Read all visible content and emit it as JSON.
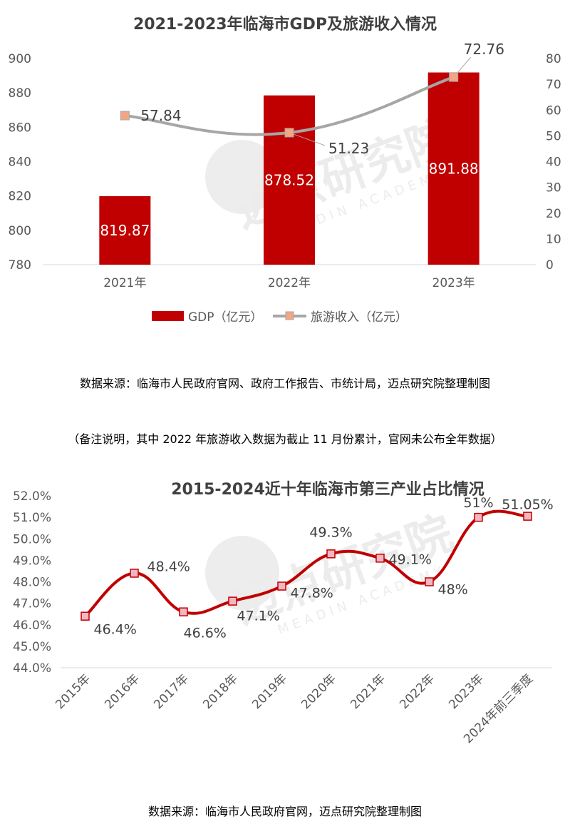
{
  "chart_data": [
    {
      "type": "bar+line",
      "title": "2021-2023年临海市GDP及旅游收入情况",
      "categories": [
        "2021年",
        "2022年",
        "2023年"
      ],
      "series": [
        {
          "name": "GDP（亿元）",
          "type": "bar",
          "axis": "left",
          "color": "#c00000",
          "values": [
            819.87,
            878.52,
            891.88
          ]
        },
        {
          "name": "旅游收入（亿元）",
          "type": "line",
          "axis": "right",
          "color": "#a6a6a6",
          "marker_color": "#f4a582",
          "values": [
            57.84,
            51.23,
            72.76
          ]
        }
      ],
      "left_axis": {
        "ylim": [
          780,
          900
        ],
        "ticks": [
          "780",
          "800",
          "820",
          "840",
          "860",
          "880",
          "900"
        ]
      },
      "right_axis": {
        "ylim": [
          0,
          80
        ],
        "ticks": [
          "0",
          "10",
          "20",
          "30",
          "40",
          "50",
          "60",
          "70",
          "80"
        ]
      },
      "bar_labels": [
        "819.87",
        "878.52",
        "891.88"
      ],
      "line_labels": [
        "57.84",
        "51.23",
        "72.76"
      ],
      "legend": [
        "GDP（亿元）",
        "旅游收入（亿元）"
      ]
    },
    {
      "type": "line",
      "title": "2015-2024近十年临海市第三产业占比情况",
      "categories": [
        "2015年",
        "2016年",
        "2017年",
        "2018年",
        "2019年",
        "2020年",
        "2021年",
        "2022年",
        "2023年",
        "2024年前三季度"
      ],
      "series": [
        {
          "name": "第三产业占比",
          "color": "#c00000",
          "values": [
            46.4,
            48.4,
            46.6,
            47.1,
            47.8,
            49.3,
            49.1,
            48.0,
            51.0,
            51.05
          ]
        }
      ],
      "labels": [
        "46.4%",
        "48.4%",
        "46.6%",
        "47.1%",
        "47.8%",
        "49.3%",
        "49.1%",
        "48%",
        "51%",
        "51.05%"
      ],
      "ylim": [
        44,
        52
      ],
      "y_ticks": [
        "44.0%",
        "45.0%",
        "46.0%",
        "47.0%",
        "48.0%",
        "49.0%",
        "50.0%",
        "51.0%",
        "52.0%"
      ]
    }
  ],
  "notes": {
    "source1": "数据来源：临海市人民政府官网、政府工作报告、市统计局，迈点研究院整理制图",
    "remark": "（备注说明，其中 2022 年旅游收入数据为截止 11 月份累计，官网未公布全年数据）",
    "source2": "数据来源：临海市人民政府官网，迈点研究院整理制图"
  },
  "watermark": {
    "text": "迈点研究院",
    "subtext": "MEADIN ACADEMY"
  }
}
